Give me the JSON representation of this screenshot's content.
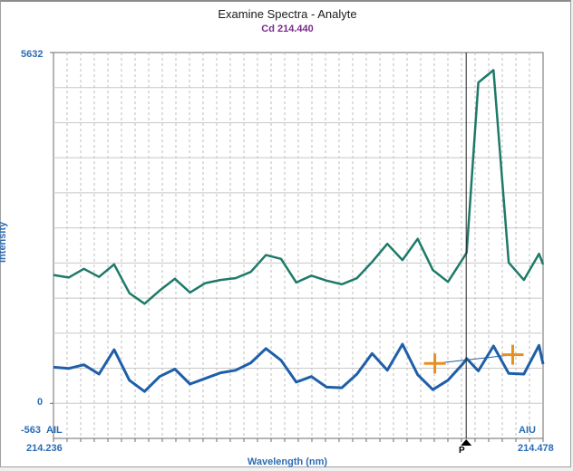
{
  "title": "Examine Spectra - Analyte",
  "subtitle": "Cd 214.440",
  "chart_data": {
    "type": "line",
    "title": "Examine Spectra - Analyte",
    "subtitle": "Cd 214.440",
    "xlabel": "Wavelength (nm)",
    "ylabel": "Intensity",
    "xlim": [
      214.236,
      214.478
    ],
    "ylim": [
      -563,
      5632
    ],
    "y_ticks": [
      "5632",
      "0",
      "-563"
    ],
    "x_ticks": [
      "214.236",
      "214.478"
    ],
    "left_marker": "AIL",
    "right_marker": "AIU",
    "peak_marker": "P",
    "peak_x": 214.44,
    "grid": true,
    "series": [
      {
        "name": "",
        "color": "#1e7a68",
        "x": [
          214.236,
          214.2435,
          214.251,
          214.2585,
          214.266,
          214.2735,
          214.281,
          214.2885,
          214.296,
          214.3035,
          214.311,
          214.3185,
          214.326,
          214.3335,
          214.341,
          214.3485,
          214.356,
          214.3635,
          214.371,
          214.3785,
          214.386,
          214.3935,
          214.401,
          214.4085,
          214.416,
          214.4235,
          214.431,
          214.4385,
          214.4402,
          214.446,
          214.4535,
          214.461,
          214.4685,
          214.476,
          214.478
        ],
        "y": [
          2060,
          2020,
          2160,
          2030,
          2230,
          1770,
          1600,
          1810,
          2000,
          1780,
          1930,
          1980,
          2010,
          2110,
          2380,
          2320,
          1940,
          2050,
          1970,
          1910,
          2010,
          2270,
          2560,
          2300,
          2640,
          2140,
          1950,
          2330,
          2420,
          5150,
          5350,
          2260,
          1980,
          2400,
          2230
        ]
      },
      {
        "name": "",
        "color": "#1e5fa8",
        "x": [
          214.236,
          214.2435,
          214.251,
          214.2585,
          214.266,
          214.2735,
          214.281,
          214.2885,
          214.296,
          214.3035,
          214.311,
          214.3185,
          214.326,
          214.3335,
          214.341,
          214.3485,
          214.356,
          214.3635,
          214.371,
          214.3785,
          214.386,
          214.3935,
          214.401,
          214.4085,
          214.416,
          214.4235,
          214.431,
          214.4385,
          214.4402,
          214.446,
          214.4535,
          214.461,
          214.4685,
          214.476,
          214.478
        ],
        "y": [
          580,
          560,
          620,
          470,
          860,
          370,
          190,
          430,
          550,
          310,
          400,
          490,
          530,
          650,
          880,
          690,
          340,
          430,
          260,
          250,
          470,
          800,
          530,
          950,
          460,
          220,
          370,
          640,
          720,
          520,
          920,
          480,
          470,
          930,
          630
        ]
      }
    ],
    "baseline": {
      "x": [
        214.4245,
        214.463
      ],
      "y": [
        640,
        780
      ]
    }
  },
  "axis": {
    "ytop": "5632",
    "yzero": "0",
    "ybot": "-563",
    "xmin": "214.236",
    "xmax": "214.478",
    "ail": "AIL",
    "aiu": "AIU",
    "xlabel": "Wavelength (nm)",
    "ylabel": "Intensity",
    "p": "P"
  }
}
